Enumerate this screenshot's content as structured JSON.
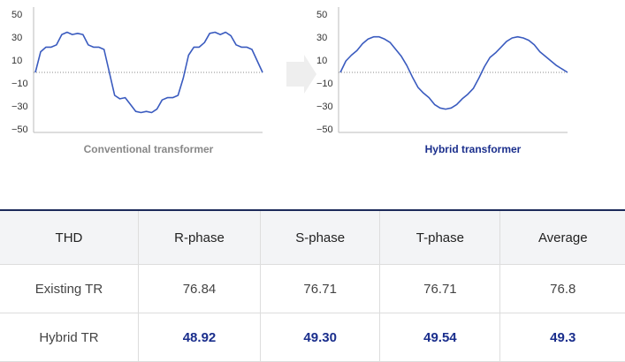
{
  "chart_data": [
    {
      "type": "line",
      "title": "Conventional transformer",
      "color": "#3a5bbf",
      "values": [
        0,
        18,
        22,
        22,
        24,
        33,
        35,
        33,
        34,
        33,
        24,
        22,
        22,
        20,
        0,
        -20,
        -23,
        -22,
        -28,
        -34,
        -35,
        -34,
        -35,
        -32,
        -24,
        -22,
        -22,
        -20,
        -5,
        15,
        22,
        22,
        26,
        34,
        35,
        33,
        35,
        32,
        24,
        22,
        22,
        20,
        10,
        0
      ],
      "ylim": [
        -50,
        50
      ],
      "yticks": [
        {
          "value": -50,
          "label": "−50"
        },
        {
          "value": -30,
          "label": "−30"
        },
        {
          "value": -10,
          "label": "−10"
        },
        10,
        30,
        50
      ]
    },
    {
      "type": "line",
      "title": "Hybrid transformer",
      "color": "#3a5bbf",
      "values": [
        0,
        10,
        15,
        19,
        25,
        29,
        31,
        31,
        29,
        26,
        20,
        14,
        6,
        -4,
        -13,
        -18,
        -22,
        -28,
        -31,
        -32,
        -31,
        -28,
        -23,
        -19,
        -14,
        -5,
        5,
        13,
        17,
        22,
        27,
        30,
        31,
        30,
        28,
        24,
        18,
        14,
        10,
        6,
        3,
        0
      ],
      "ylim": [
        -50,
        50
      ],
      "yticks": [
        {
          "value": -50,
          "label": "−50"
        },
        {
          "value": -30,
          "label": "−30"
        },
        {
          "value": -10,
          "label": "−10"
        },
        10,
        30,
        50
      ]
    }
  ],
  "table": {
    "header": [
      "THD",
      "R-phase",
      "S-phase",
      "T-phase",
      "Average"
    ],
    "rows": [
      [
        "Existing TR",
        "76.84",
        "76.71",
        "76.71",
        "76.8"
      ],
      [
        "Hybrid TR",
        "48.92",
        "49.30",
        "49.54",
        "49.3"
      ]
    ]
  }
}
